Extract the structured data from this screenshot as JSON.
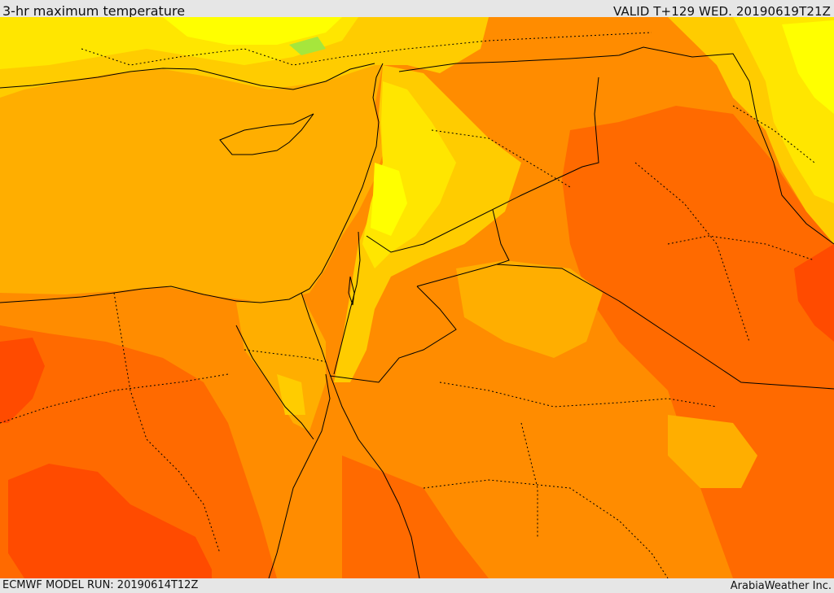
{
  "header": {
    "title": "3-hr maximum temperature",
    "valid": "VALID T+129 WED. 20190619T21Z"
  },
  "footer": {
    "model_run": "ECMWF MODEL RUN: 20190614T12Z",
    "credit": "ArabiaWeather Inc."
  },
  "colors": {
    "yellow": "#ffff00",
    "light_yellow": "#ffe600",
    "gold": "#ffcc00",
    "amber": "#ffae00",
    "orange": "#ff8c00",
    "dark_orange": "#ff6a00",
    "red_orange": "#ff4b00",
    "green_patch": "#a6e63c",
    "border": "#000000"
  }
}
